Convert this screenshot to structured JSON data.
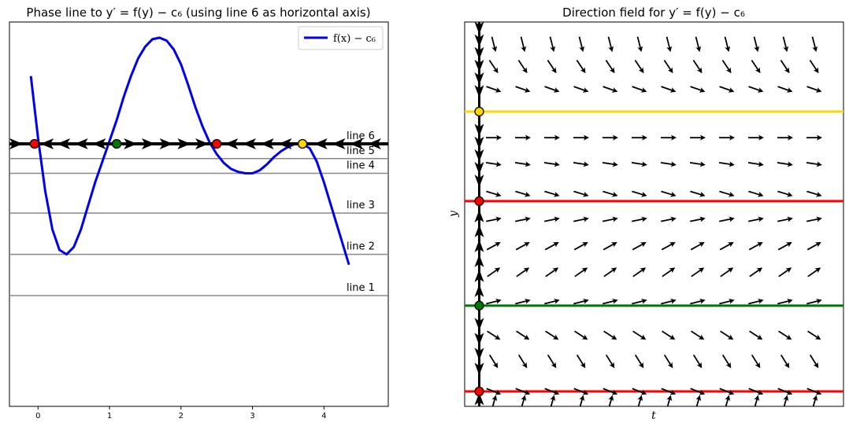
{
  "chart_data": [
    {
      "type": "line",
      "title": "Phase line to y′ = f(y) − c₆ (using line 6 as horizontal axis)",
      "xlim": [
        -0.4,
        4.9
      ],
      "x_ticks": [
        "0",
        "1",
        "2",
        "3",
        "4"
      ],
      "x_tick_values": [
        0,
        1,
        2,
        3,
        4
      ],
      "series": [
        {
          "name": "f(x) − c₆",
          "color": "#0000ee",
          "x": [
            -0.1,
            0.0,
            0.1,
            0.2,
            0.3,
            0.4,
            0.5,
            0.6,
            0.7,
            0.8,
            0.9,
            1.0,
            1.1,
            1.2,
            1.3,
            1.4,
            1.5,
            1.6,
            1.7,
            1.8,
            1.9,
            2.0,
            2.1,
            2.2,
            2.3,
            2.4,
            2.5,
            2.6,
            2.7,
            2.8,
            2.9,
            3.0,
            3.1,
            3.2,
            3.3,
            3.4,
            3.5,
            3.6,
            3.7,
            3.8,
            3.9,
            4.0,
            4.1,
            4.2,
            4.35
          ],
          "y": [
            2.3,
            0.2,
            -1.6,
            -2.9,
            -3.6,
            -3.75,
            -3.5,
            -2.9,
            -2.1,
            -1.3,
            -0.6,
            0.1,
            0.8,
            1.6,
            2.3,
            2.9,
            3.3,
            3.55,
            3.6,
            3.5,
            3.2,
            2.7,
            2.0,
            1.25,
            0.6,
            0.05,
            -0.35,
            -0.65,
            -0.85,
            -0.95,
            -1.0,
            -1.0,
            -0.9,
            -0.7,
            -0.45,
            -0.25,
            -0.1,
            0.0,
            0.0,
            -0.15,
            -0.6,
            -1.3,
            -2.1,
            -2.9,
            -4.1
          ]
        }
      ],
      "horizontal_lines": [
        {
          "label": "line 6",
          "y": 0.0
        },
        {
          "label": "line 5",
          "y": -0.5
        },
        {
          "label": "line 4",
          "y": -1.0
        },
        {
          "label": "line 3",
          "y": -2.35
        },
        {
          "label": "line 2",
          "y": -3.75
        },
        {
          "label": "line 1",
          "y": -5.15
        }
      ],
      "equilibria": [
        {
          "x": -0.05,
          "color": "#ff0000"
        },
        {
          "x": 1.1,
          "color": "#007700"
        },
        {
          "x": 2.5,
          "color": "#ff0000"
        },
        {
          "x": 3.7,
          "color": "#ffd700"
        }
      ],
      "phase_arrows": [
        {
          "x": -0.3,
          "dir": 1
        },
        {
          "x": 0.12,
          "dir": -1
        },
        {
          "x": 0.35,
          "dir": -1
        },
        {
          "x": 0.6,
          "dir": -1
        },
        {
          "x": 0.85,
          "dir": -1
        },
        {
          "x": 1.3,
          "dir": 1
        },
        {
          "x": 1.55,
          "dir": 1
        },
        {
          "x": 1.8,
          "dir": 1
        },
        {
          "x": 2.05,
          "dir": 1
        },
        {
          "x": 2.3,
          "dir": 1
        },
        {
          "x": 2.7,
          "dir": -1
        },
        {
          "x": 2.95,
          "dir": -1
        },
        {
          "x": 3.2,
          "dir": -1
        },
        {
          "x": 3.45,
          "dir": -1
        },
        {
          "x": 3.95,
          "dir": -1
        },
        {
          "x": 4.2,
          "dir": -1
        },
        {
          "x": 4.45,
          "dir": -1
        },
        {
          "x": 4.7,
          "dir": -1
        }
      ],
      "legend": {
        "label": "f(x) − c₆",
        "placement": "top-right"
      },
      "grid": false
    },
    {
      "type": "quiver",
      "title": "Direction field for y′ = f(y) − c₆",
      "xlabel": "t",
      "ylabel": "y",
      "xlim": [
        0,
        13
      ],
      "ylim": [
        -0.25,
        4.9
      ],
      "equilibria": [
        {
          "y": 3.7,
          "color": "#ffd700"
        },
        {
          "y": 2.5,
          "color": "#ff0000"
        },
        {
          "y": 1.1,
          "color": "#007700"
        },
        {
          "y": -0.05,
          "color": "#ff0000"
        }
      ],
      "field_columns_t": [
        1,
        2,
        3,
        4,
        5,
        6,
        7,
        8,
        9,
        10,
        11,
        12
      ],
      "field_rows": [
        {
          "y": 4.6,
          "slope": -4.0
        },
        {
          "y": 4.3,
          "slope": -1.5
        },
        {
          "y": 4.0,
          "slope": -0.35
        },
        {
          "y": 3.35,
          "slope": 0.0
        },
        {
          "y": 3.0,
          "slope": -0.15
        },
        {
          "y": 2.6,
          "slope": -0.3
        },
        {
          "y": 2.25,
          "slope": 0.2
        },
        {
          "y": 1.9,
          "slope": 0.55
        },
        {
          "y": 1.55,
          "slope": 0.7
        },
        {
          "y": 1.15,
          "slope": 0.25
        },
        {
          "y": 0.7,
          "slope": -0.65
        },
        {
          "y": 0.35,
          "slope": -1.6
        },
        {
          "y": -0.05,
          "slope": -0.4
        },
        {
          "y": -0.2,
          "slope": 3.5
        }
      ],
      "left_column_t": 0.5,
      "left_column_arrows": [
        {
          "y": 4.82,
          "dir": -1
        },
        {
          "y": 4.65,
          "dir": -1
        },
        {
          "y": 4.48,
          "dir": -1
        },
        {
          "y": 4.31,
          "dir": -1
        },
        {
          "y": 4.14,
          "dir": -1
        },
        {
          "y": 3.97,
          "dir": -1
        },
        {
          "y": 3.45,
          "dir": -1
        },
        {
          "y": 3.28,
          "dir": -1
        },
        {
          "y": 3.11,
          "dir": -1
        },
        {
          "y": 2.94,
          "dir": -1
        },
        {
          "y": 2.77,
          "dir": -1
        },
        {
          "y": 2.3,
          "dir": 1
        },
        {
          "y": 2.1,
          "dir": 1
        },
        {
          "y": 1.9,
          "dir": 1
        },
        {
          "y": 1.7,
          "dir": 1
        },
        {
          "y": 1.5,
          "dir": 1
        },
        {
          "y": 1.3,
          "dir": 1
        },
        {
          "y": 0.85,
          "dir": -1
        },
        {
          "y": 0.65,
          "dir": -1
        },
        {
          "y": 0.45,
          "dir": -1
        },
        {
          "y": 0.25,
          "dir": -1
        },
        {
          "y": -0.15,
          "dir": 1
        }
      ],
      "grid": false
    }
  ]
}
